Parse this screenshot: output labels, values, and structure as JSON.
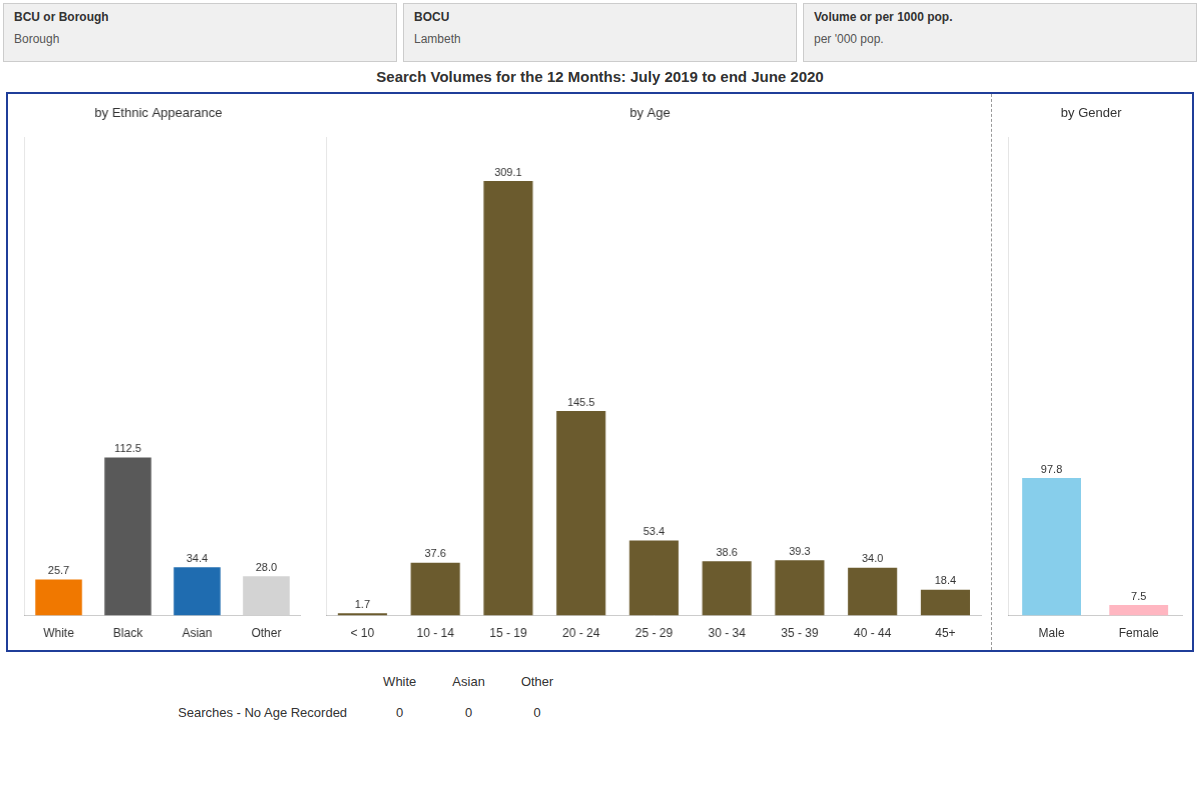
{
  "title": "Search Volumes for the 12 Months: July 2019 to end June 2020",
  "annotations": {
    "header_boxes": [
      {
        "label": "BCU or Borough",
        "value": "Borough"
      },
      {
        "label": "BOCU",
        "value": "Lambeth"
      },
      {
        "label": "Volume or per 1000 pop.",
        "value": "per '000 pop."
      }
    ],
    "table": {
      "header": [
        "White",
        "Asian",
        "Other"
      ],
      "row_label": "Searches - No Age Recorded",
      "row": [
        0,
        0,
        0
      ]
    }
  },
  "chart_data": [
    {
      "type": "bar",
      "title": "by Ethnic Appearance",
      "categories": [
        "White",
        "Black",
        "Asian",
        "Other"
      ],
      "values": [
        25.7,
        112.5,
        34.4,
        28.0
      ],
      "value_labels": [
        "25.7",
        "112.5",
        "34.4",
        "28.0"
      ],
      "colors": [
        "#F07800",
        "#595959",
        "#1F6CB0",
        "#D3D3D3"
      ],
      "ylim": [
        0,
        340
      ],
      "grid": false,
      "tick_labels": "x",
      "data_labels": true
    },
    {
      "type": "bar",
      "title": "by Age",
      "categories": [
        "< 10",
        "10 - 14",
        "15 - 19",
        "20 - 24",
        "25 - 29",
        "30 - 34",
        "35 - 39",
        "40 - 44",
        "45+"
      ],
      "values": [
        1.7,
        37.6,
        309.1,
        145.5,
        53.4,
        38.6,
        39.3,
        34.0,
        18.4
      ],
      "value_labels": [
        "1.7",
        "37.6",
        "309.1",
        "145.5",
        "53.4",
        "38.6",
        "39.3",
        "34.0",
        "18.4"
      ],
      "color": "#6B5B2E",
      "ylim": [
        0,
        340
      ],
      "grid": false,
      "tick_labels": "x",
      "data_labels": true
    },
    {
      "type": "bar",
      "title": "by Gender",
      "categories": [
        "Male",
        "Female"
      ],
      "values": [
        97.8,
        7.5
      ],
      "colors": [
        "#87CEEB",
        "#FFB6C1"
      ],
      "ylim": [
        0,
        340
      ],
      "grid": false,
      "tick_labels": "x",
      "data_labels": true
    }
  ]
}
